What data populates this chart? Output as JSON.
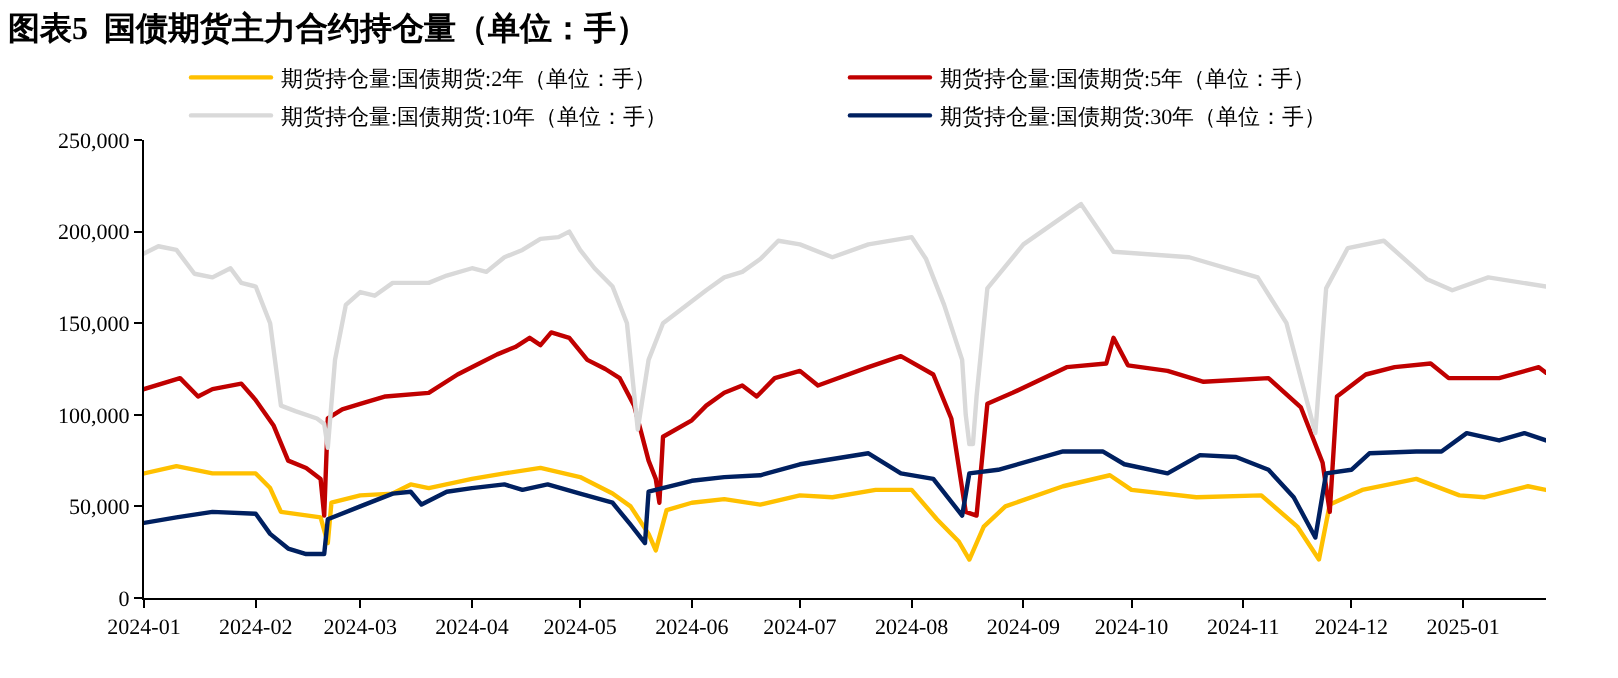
{
  "chart_data": {
    "type": "line",
    "title": "图表5  国债期货主力合约持仓量（单位：手）",
    "xlim": [
      "2024-01-01",
      "2025-01-24"
    ],
    "xticks": [
      "2024-01",
      "2024-02",
      "2024-03",
      "2024-04",
      "2024-05",
      "2024-06",
      "2024-07",
      "2024-08",
      "2024-09",
      "2024-10",
      "2024-11",
      "2024-12",
      "2025-01"
    ],
    "ylim": [
      0,
      250000
    ],
    "yticks": [
      0,
      {
        "value": 50000,
        "label": "50,000"
      },
      {
        "value": 100000,
        "label": "100,000"
      },
      {
        "value": 150000,
        "label": "150,000"
      },
      {
        "value": 200000,
        "label": "200,000"
      },
      {
        "value": 250000,
        "label": "250,000"
      }
    ],
    "legend": "top",
    "marker": "none",
    "line_style": "solid",
    "series": [
      {
        "name": "期货持仓量:国债期货:2年（单位：手）",
        "color": "#ffc000",
        "x": [
          "2024-01-01",
          "2024-01-10",
          "2024-01-20",
          "2024-02-01",
          "2024-02-05",
          "2024-02-08",
          "2024-02-19",
          "2024-02-21",
          "2024-02-22",
          "2024-03-01",
          "2024-03-10",
          "2024-03-15",
          "2024-03-20",
          "2024-04-01",
          "2024-04-10",
          "2024-04-20",
          "2024-05-01",
          "2024-05-10",
          "2024-05-15",
          "2024-05-20",
          "2024-05-22",
          "2024-05-25",
          "2024-06-01",
          "2024-06-10",
          "2024-06-20",
          "2024-07-01",
          "2024-07-10",
          "2024-07-22",
          "2024-08-01",
          "2024-08-08",
          "2024-08-14",
          "2024-08-17",
          "2024-08-21",
          "2024-08-27",
          "2024-09-12",
          "2024-09-25",
          "2024-10-01",
          "2024-10-19",
          "2024-11-06",
          "2024-11-16",
          "2024-11-22",
          "2024-11-25",
          "2024-12-04",
          "2024-12-19",
          "2024-12-31",
          "2025-01-07",
          "2025-01-19",
          "2025-01-24"
        ],
        "values": [
          68000,
          72000,
          68000,
          68000,
          60000,
          47000,
          44000,
          30000,
          52000,
          56000,
          57000,
          62000,
          60000,
          65000,
          68000,
          71000,
          66000,
          57000,
          50000,
          35000,
          26000,
          48000,
          52000,
          54000,
          51000,
          56000,
          55000,
          59000,
          59000,
          43000,
          31000,
          21000,
          39000,
          50000,
          61000,
          67000,
          59000,
          55000,
          56000,
          39000,
          21000,
          51000,
          59000,
          65000,
          56000,
          55000,
          61000,
          59000
        ]
      },
      {
        "name": "期货持仓量:国债期货:5年（单位：手）",
        "color": "#c00000",
        "x": [
          "2024-01-01",
          "2024-01-11",
          "2024-01-16",
          "2024-01-20",
          "2024-01-28",
          "2024-02-01",
          "2024-02-06",
          "2024-02-10",
          "2024-02-15",
          "2024-02-19",
          "2024-02-20",
          "2024-02-21",
          "2024-02-25",
          "2024-03-01",
          "2024-03-08",
          "2024-03-20",
          "2024-03-28",
          "2024-04-03",
          "2024-04-08",
          "2024-04-13",
          "2024-04-17",
          "2024-04-20",
          "2024-04-23",
          "2024-04-28",
          "2024-05-03",
          "2024-05-08",
          "2024-05-12",
          "2024-05-16",
          "2024-05-20",
          "2024-05-22",
          "2024-05-23",
          "2024-05-24",
          "2024-06-01",
          "2024-06-05",
          "2024-06-10",
          "2024-06-15",
          "2024-06-19",
          "2024-06-24",
          "2024-07-01",
          "2024-07-06",
          "2024-07-20",
          "2024-07-29",
          "2024-08-07",
          "2024-08-12",
          "2024-08-16",
          "2024-08-19",
          "2024-08-22",
          "2024-08-29",
          "2024-09-13",
          "2024-09-24",
          "2024-09-26",
          "2024-09-30",
          "2024-10-11",
          "2024-10-21",
          "2024-11-08",
          "2024-11-17",
          "2024-11-23",
          "2024-11-25",
          "2024-11-27",
          "2024-12-05",
          "2024-12-13",
          "2024-12-23",
          "2024-12-28",
          "2025-01-11",
          "2025-01-22",
          "2025-01-24"
        ],
        "values": [
          114000,
          120000,
          110000,
          114000,
          117000,
          108000,
          94000,
          75000,
          71000,
          65000,
          45000,
          98000,
          103000,
          106000,
          110000,
          112000,
          122000,
          128000,
          133000,
          137000,
          142000,
          138000,
          145000,
          142000,
          130000,
          125000,
          120000,
          105000,
          75000,
          65000,
          52000,
          88000,
          97000,
          105000,
          112000,
          116000,
          110000,
          120000,
          124000,
          116000,
          126000,
          132000,
          122000,
          98000,
          47000,
          45000,
          106000,
          112000,
          126000,
          128000,
          142000,
          127000,
          124000,
          118000,
          120000,
          104000,
          74000,
          47000,
          110000,
          122000,
          126000,
          128000,
          120000,
          120000,
          126000,
          123000
        ]
      },
      {
        "name": "期货持仓量:国债期货:10年（单位：手）",
        "color": "#d9d9d9",
        "x": [
          "2024-01-01",
          "2024-01-05",
          "2024-01-10",
          "2024-01-15",
          "2024-01-20",
          "2024-01-25",
          "2024-01-28",
          "2024-02-01",
          "2024-02-05",
          "2024-02-08",
          "2024-02-12",
          "2024-02-18",
          "2024-02-20",
          "2024-02-21",
          "2024-02-23",
          "2024-02-26",
          "2024-03-01",
          "2024-03-05",
          "2024-03-10",
          "2024-03-20",
          "2024-03-25",
          "2024-04-01",
          "2024-04-05",
          "2024-04-10",
          "2024-04-15",
          "2024-04-20",
          "2024-04-25",
          "2024-04-28",
          "2024-05-01",
          "2024-05-05",
          "2024-05-10",
          "2024-05-14",
          "2024-05-17",
          "2024-05-20",
          "2024-05-24",
          "2024-06-01",
          "2024-06-05",
          "2024-06-10",
          "2024-06-15",
          "2024-06-20",
          "2024-06-25",
          "2024-07-01",
          "2024-07-10",
          "2024-07-20",
          "2024-08-01",
          "2024-08-05",
          "2024-08-10",
          "2024-08-15",
          "2024-08-16",
          "2024-08-17",
          "2024-08-18",
          "2024-08-19",
          "2024-08-22",
          "2024-09-01",
          "2024-09-17",
          "2024-09-26",
          "2024-10-17",
          "2024-11-05",
          "2024-11-13",
          "2024-11-21",
          "2024-11-24",
          "2024-11-30",
          "2024-12-10",
          "2024-12-22",
          "2024-12-29",
          "2025-01-08",
          "2025-01-24"
        ],
        "values": [
          188000,
          192000,
          190000,
          177000,
          175000,
          180000,
          172000,
          170000,
          150000,
          105000,
          102000,
          98000,
          95000,
          82000,
          130000,
          160000,
          167000,
          165000,
          172000,
          172000,
          176000,
          180000,
          178000,
          186000,
          190000,
          196000,
          197000,
          200000,
          190000,
          180000,
          170000,
          150000,
          92000,
          130000,
          150000,
          162000,
          168000,
          175000,
          178000,
          185000,
          195000,
          193000,
          186000,
          193000,
          197000,
          185000,
          160000,
          130000,
          100000,
          84000,
          84000,
          110000,
          169000,
          193000,
          215000,
          189000,
          186000,
          175000,
          150000,
          90000,
          169000,
          191000,
          195000,
          174000,
          168000,
          175000,
          170000
        ]
      },
      {
        "name": "期货持仓量:国债期货:30年（单位：手）",
        "color": "#002060",
        "x": [
          "2024-01-01",
          "2024-01-10",
          "2024-01-20",
          "2024-02-01",
          "2024-02-05",
          "2024-02-10",
          "2024-02-15",
          "2024-02-20",
          "2024-02-21",
          "2024-03-01",
          "2024-03-10",
          "2024-03-15",
          "2024-03-18",
          "2024-03-25",
          "2024-04-01",
          "2024-04-10",
          "2024-04-15",
          "2024-04-22",
          "2024-05-01",
          "2024-05-10",
          "2024-05-15",
          "2024-05-19",
          "2024-05-20",
          "2024-06-01",
          "2024-06-10",
          "2024-06-20",
          "2024-07-01",
          "2024-07-20",
          "2024-07-29",
          "2024-08-07",
          "2024-08-15",
          "2024-08-17",
          "2024-08-25",
          "2024-09-12",
          "2024-09-23",
          "2024-09-29",
          "2024-10-11",
          "2024-10-20",
          "2024-10-30",
          "2024-11-08",
          "2024-11-15",
          "2024-11-21",
          "2024-11-24",
          "2024-12-01",
          "2024-12-06",
          "2024-12-19",
          "2024-12-26",
          "2025-01-02",
          "2025-01-11",
          "2025-01-18",
          "2025-01-24"
        ],
        "values": [
          41000,
          44000,
          47000,
          46000,
          35000,
          27000,
          24000,
          24000,
          43000,
          50000,
          57000,
          58000,
          51000,
          58000,
          60000,
          62000,
          59000,
          62000,
          57000,
          52000,
          40000,
          30000,
          58000,
          64000,
          66000,
          67000,
          73000,
          79000,
          68000,
          65000,
          45000,
          68000,
          70000,
          80000,
          80000,
          73000,
          68000,
          78000,
          77000,
          70000,
          55000,
          33000,
          68000,
          70000,
          79000,
          80000,
          80000,
          90000,
          86000,
          90000,
          86000
        ]
      }
    ]
  }
}
